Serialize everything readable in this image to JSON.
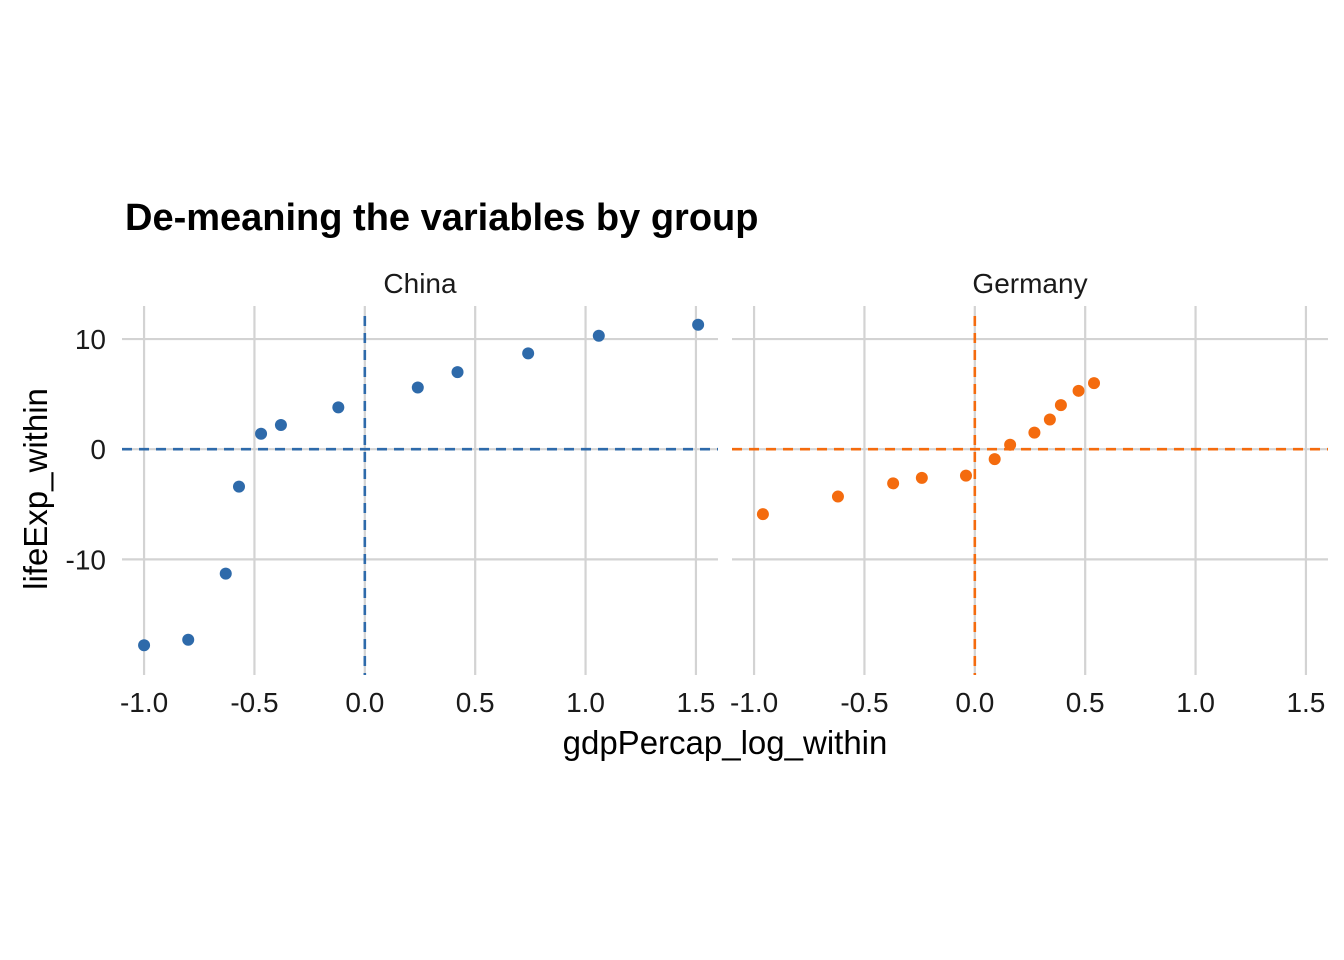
{
  "chart_data": {
    "type": "scatter",
    "title": "De-meaning the variables by group",
    "xlabel": "gdpPercap_log_within",
    "ylabel": "lifeExp_within",
    "xlim": [
      -1.1,
      1.6
    ],
    "ylim": [
      -20.5,
      13.0
    ],
    "x_ticks": [
      {
        "value": -1.0,
        "label": "-1.0"
      },
      {
        "value": -0.5,
        "label": "-0.5"
      },
      {
        "value": 0.0,
        "label": "0.0"
      },
      {
        "value": 0.5,
        "label": "0.5"
      },
      {
        "value": 1.0,
        "label": "1.0"
      },
      {
        "value": 1.5,
        "label": "1.5"
      }
    ],
    "y_ticks": [
      {
        "value": 10,
        "label": "10"
      },
      {
        "value": 0,
        "label": "0"
      },
      {
        "value": -10,
        "label": "-10"
      }
    ],
    "grid": true,
    "reference_lines": {
      "x": 0,
      "y": 0,
      "style": "dashed"
    },
    "panels": [
      {
        "strip": "China",
        "color": "#2e6aaa",
        "points": [
          {
            "x": -1.0,
            "y": -17.8
          },
          {
            "x": -0.8,
            "y": -17.3
          },
          {
            "x": -0.63,
            "y": -11.3
          },
          {
            "x": -0.57,
            "y": -3.4
          },
          {
            "x": -0.47,
            "y": 1.4
          },
          {
            "x": -0.38,
            "y": 2.2
          },
          {
            "x": -0.12,
            "y": 3.8
          },
          {
            "x": 0.24,
            "y": 5.6
          },
          {
            "x": 0.42,
            "y": 7.0
          },
          {
            "x": 0.74,
            "y": 8.7
          },
          {
            "x": 1.06,
            "y": 10.3
          },
          {
            "x": 1.51,
            "y": 11.3
          }
        ]
      },
      {
        "strip": "Germany",
        "color": "#f46b0e",
        "points": [
          {
            "x": -0.96,
            "y": -5.9
          },
          {
            "x": -0.62,
            "y": -4.3
          },
          {
            "x": -0.37,
            "y": -3.1
          },
          {
            "x": -0.24,
            "y": -2.6
          },
          {
            "x": -0.04,
            "y": -2.4
          },
          {
            "x": 0.09,
            "y": -0.9
          },
          {
            "x": 0.16,
            "y": 0.4
          },
          {
            "x": 0.27,
            "y": 1.5
          },
          {
            "x": 0.34,
            "y": 2.7
          },
          {
            "x": 0.39,
            "y": 4.0
          },
          {
            "x": 0.47,
            "y": 5.3
          },
          {
            "x": 0.54,
            "y": 6.0
          }
        ]
      }
    ]
  }
}
